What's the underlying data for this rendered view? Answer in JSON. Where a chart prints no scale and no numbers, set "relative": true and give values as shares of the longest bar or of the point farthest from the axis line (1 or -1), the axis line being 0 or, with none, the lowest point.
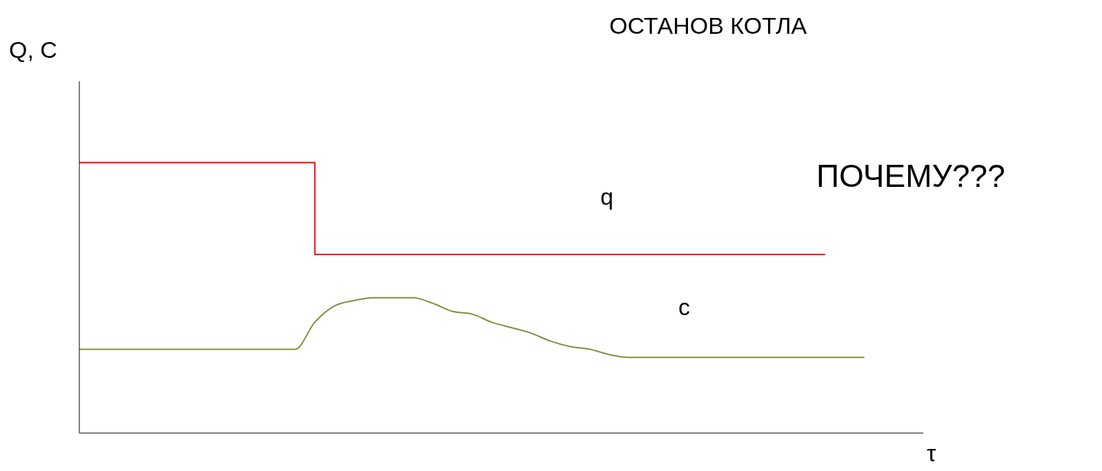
{
  "chart_data": {
    "type": "line",
    "title": "ОСТАНОВ КОТЛА",
    "ylabel": "Q, C",
    "xlabel": "τ",
    "annotations": [
      "ПОЧЕМУ???"
    ],
    "relative": true,
    "grid": false,
    "legend": false,
    "marker": "none",
    "categories": [
      null,
      null,
      null,
      null,
      null,
      null,
      null,
      null,
      null,
      null,
      null,
      null,
      null,
      null,
      null,
      null,
      null,
      null,
      null,
      null,
      null,
      null,
      null,
      null,
      null,
      null,
      null,
      null,
      null,
      null,
      null,
      null,
      null,
      null,
      null,
      null,
      null,
      null,
      null,
      null,
      null,
      null,
      null,
      null
    ],
    "series": [
      {
        "name": "q",
        "type": "step",
        "color": "#ff0000",
        "values": [
          1,
          1,
          1,
          1,
          1,
          1,
          1,
          1,
          1,
          1,
          1,
          1,
          0.66,
          0.66,
          0.66,
          0.66,
          0.66,
          0.66,
          0.66,
          0.66,
          0.66,
          0.66,
          0.66,
          0.66,
          0.66,
          0.66,
          0.66,
          0.66,
          0.66,
          0.66,
          0.66,
          0.66,
          0.66,
          0.66,
          0.66,
          0.66,
          0.66,
          0.66,
          0.66,
          null,
          null,
          null,
          null,
          null
        ]
      },
      {
        "name": "c",
        "color": "#77933c",
        "values": [
          0.31,
          0.31,
          0.31,
          0.31,
          0.31,
          0.31,
          0.31,
          0.31,
          0.31,
          0.31,
          0.31,
          0.31,
          0.41,
          0.47,
          0.49,
          0.5,
          0.5,
          0.5,
          0.48,
          0.45,
          0.44,
          0.41,
          0.39,
          0.37,
          0.34,
          0.32,
          0.31,
          0.29,
          0.28,
          0.28,
          0.28,
          0.28,
          0.28,
          0.28,
          0.28,
          0.28,
          0.28,
          0.28,
          0.28,
          0.28,
          0.28,
          null,
          null,
          null
        ]
      }
    ]
  }
}
